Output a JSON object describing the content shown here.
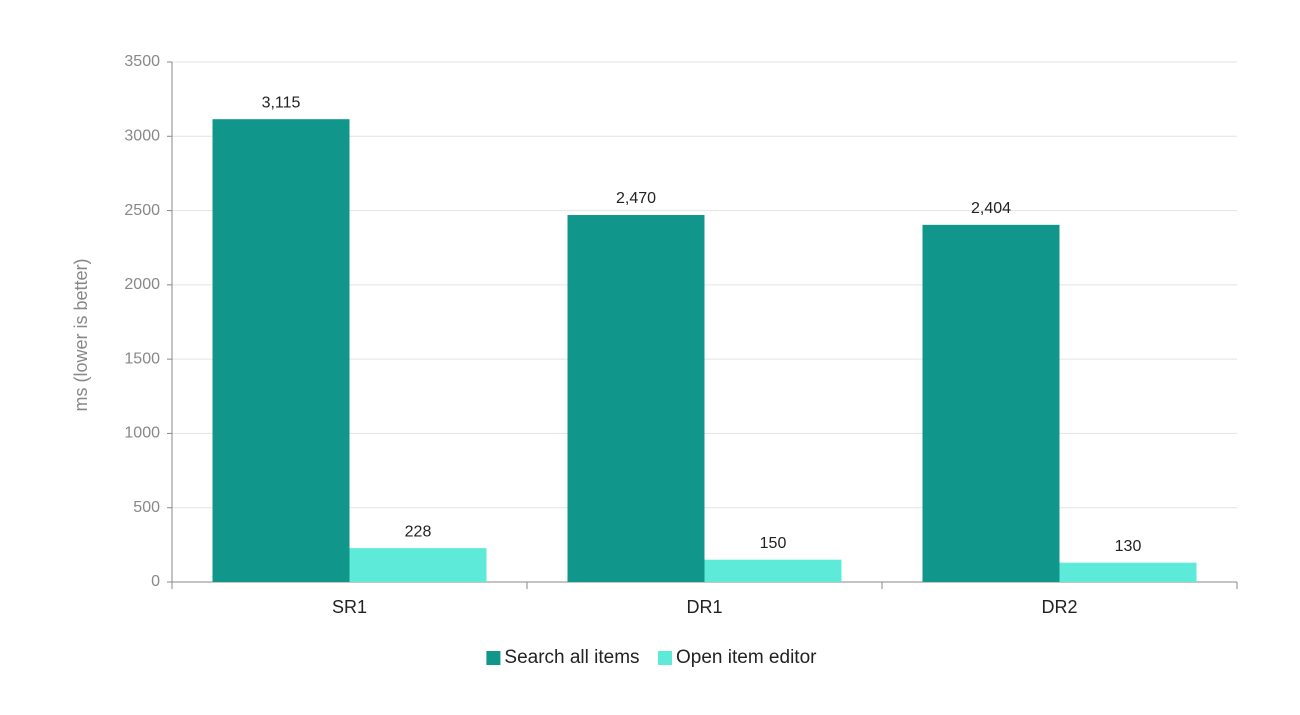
{
  "chart_data": {
    "type": "bar",
    "categories": [
      "SR1",
      "DR1",
      "DR2"
    ],
    "series": [
      {
        "name": "Search all items",
        "color": "#10968a",
        "values": [
          3115,
          2470,
          2404
        ],
        "value_labels": [
          "3,115",
          "2,470",
          "2,404"
        ]
      },
      {
        "name": "Open item editor",
        "color": "#5eead9",
        "values": [
          228,
          150,
          130
        ]
      }
    ],
    "y_label": "ms (lower is better)",
    "ylim": [
      0,
      3500
    ],
    "yticks": [
      0,
      500,
      1000,
      1500,
      2000,
      2500,
      3000,
      3500
    ],
    "grid": true,
    "legend": "bottom"
  }
}
